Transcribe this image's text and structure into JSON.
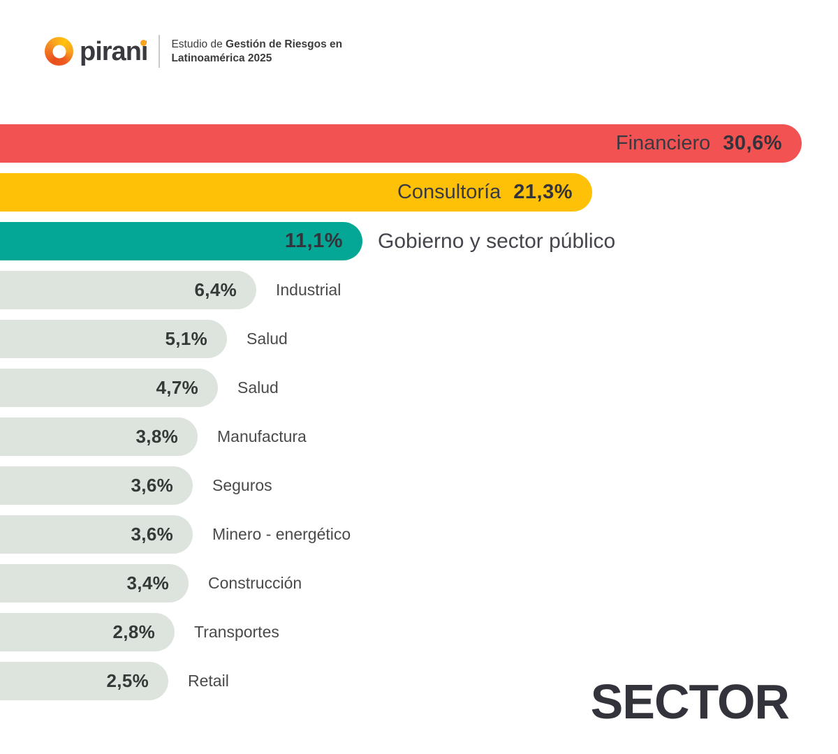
{
  "header": {
    "brand": "pirani",
    "subtitle_prefix": "Estudio de ",
    "subtitle_bold_line1": "Gestión de Riesgos en",
    "subtitle_bold_line2": "Latinoamérica 2025"
  },
  "footer": {
    "title": "SECTOR"
  },
  "colors": {
    "bar_red": "#F25252",
    "bar_yellow": "#FFC107",
    "bar_teal": "#04A795",
    "bar_gray": "#DDE4DE",
    "text_dark": "#33333B",
    "logo_orange": "#F9A41F"
  },
  "chart_data": {
    "type": "bar",
    "orientation": "horizontal",
    "title": "SECTOR",
    "value_suffix": "%",
    "decimal_separator": ",",
    "xlim": [
      0,
      32
    ],
    "grid": false,
    "legend": false,
    "categories": [
      "Financiero",
      "Consultoría",
      "Gobierno y sector público",
      "Industrial",
      "Salud",
      "Salud",
      "Manufactura",
      "Seguros",
      "Minero - energético",
      "Construcción",
      "Transportes",
      "Retail"
    ],
    "values": [
      30.6,
      21.3,
      11.1,
      6.4,
      5.1,
      4.7,
      3.8,
      3.6,
      3.6,
      3.4,
      2.8,
      2.5
    ],
    "bars": [
      {
        "label": "Financiero",
        "value": 30.6,
        "display": "30,6%",
        "color": "#F25252",
        "label_position": "inside"
      },
      {
        "label": "Consultoría",
        "value": 21.3,
        "display": "21,3%",
        "color": "#FFC107",
        "label_position": "inside"
      },
      {
        "label": "Gobierno y sector público",
        "value": 11.1,
        "display": "11,1%",
        "color": "#04A795",
        "label_position": "outside-large"
      },
      {
        "label": "Industrial",
        "value": 6.4,
        "display": "6,4%",
        "color": "#DDE4DE",
        "label_position": "outside"
      },
      {
        "label": "Salud",
        "value": 5.1,
        "display": "5,1%",
        "color": "#DDE4DE",
        "label_position": "outside"
      },
      {
        "label": "Salud",
        "value": 4.7,
        "display": "4,7%",
        "color": "#DDE4DE",
        "label_position": "outside"
      },
      {
        "label": "Manufactura",
        "value": 3.8,
        "display": "3,8%",
        "color": "#DDE4DE",
        "label_position": "outside"
      },
      {
        "label": "Seguros",
        "value": 3.6,
        "display": "3,6%",
        "color": "#DDE4DE",
        "label_position": "outside"
      },
      {
        "label": "Minero - energético",
        "value": 3.6,
        "display": "3,6%",
        "color": "#DDE4DE",
        "label_position": "outside"
      },
      {
        "label": "Construcción",
        "value": 3.4,
        "display": "3,4%",
        "color": "#DDE4DE",
        "label_position": "outside"
      },
      {
        "label": "Transportes",
        "value": 2.8,
        "display": "2,8%",
        "color": "#DDE4DE",
        "label_position": "outside"
      },
      {
        "label": "Retail",
        "value": 2.5,
        "display": "2,5%",
        "color": "#DDE4DE",
        "label_position": "outside"
      }
    ]
  }
}
